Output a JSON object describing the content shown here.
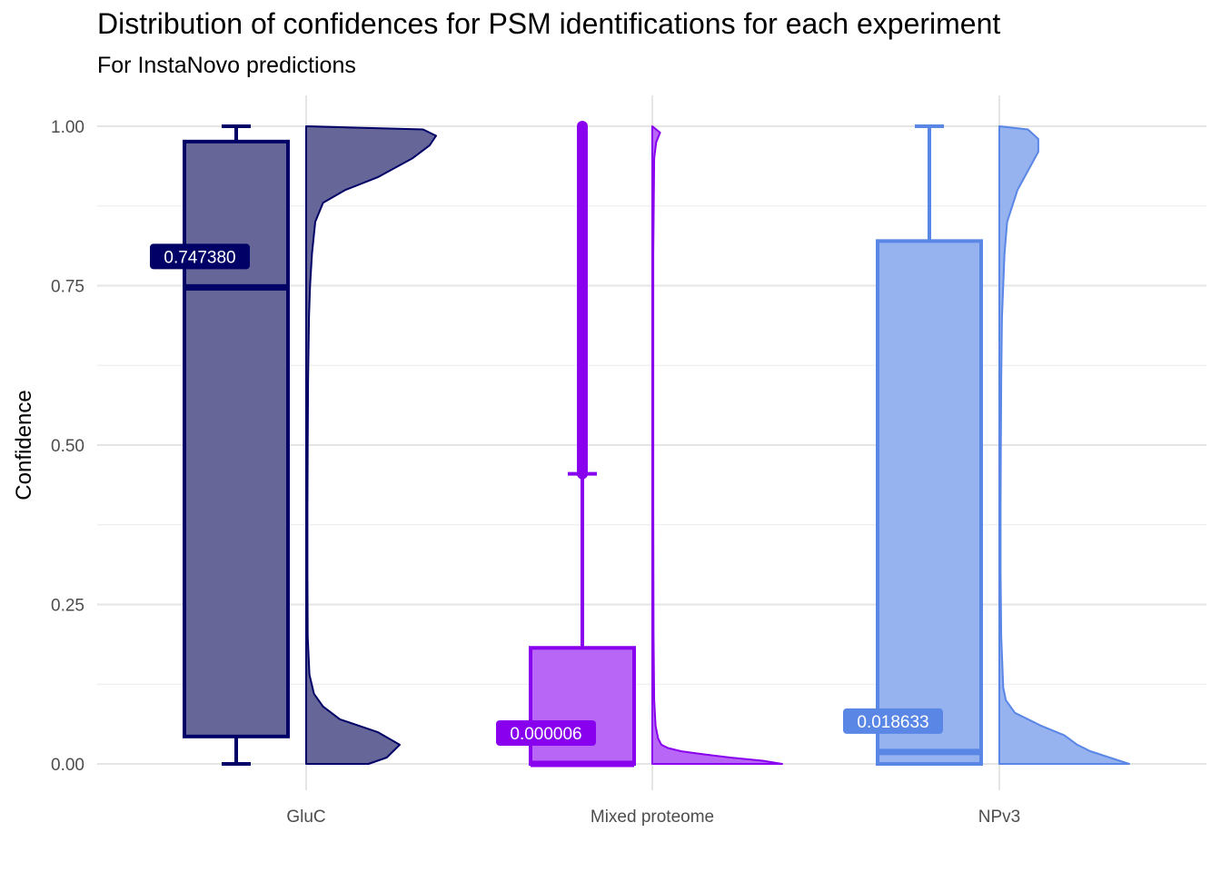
{
  "chart_data": {
    "type": "box-violin",
    "title": "Distribution of confidences for PSM identifications for each experiment",
    "subtitle": "For InstaNovo predictions",
    "xlabel": "",
    "ylabel": "Confidence",
    "ylim": [
      0,
      1
    ],
    "y_ticks": [
      "0.00",
      "0.25",
      "0.50",
      "0.75",
      "1.00"
    ],
    "grid": true,
    "groups": [
      {
        "category": "GluC",
        "color": "#000066",
        "fill": "#666699",
        "box": {
          "min": 0.0,
          "q1": 0.043,
          "median": 0.74738,
          "q3": 0.976,
          "max": 1.0
        },
        "median_label": "0.747380",
        "outliers_from": null,
        "density": [
          [
            0.0,
            0.48
          ],
          [
            0.01,
            0.62
          ],
          [
            0.03,
            0.72
          ],
          [
            0.05,
            0.55
          ],
          [
            0.07,
            0.26
          ],
          [
            0.09,
            0.13
          ],
          [
            0.11,
            0.06
          ],
          [
            0.14,
            0.025
          ],
          [
            0.2,
            0.012
          ],
          [
            0.3,
            0.01
          ],
          [
            0.4,
            0.01
          ],
          [
            0.5,
            0.012
          ],
          [
            0.6,
            0.015
          ],
          [
            0.7,
            0.022
          ],
          [
            0.75,
            0.03
          ],
          [
            0.8,
            0.045
          ],
          [
            0.85,
            0.07
          ],
          [
            0.88,
            0.13
          ],
          [
            0.9,
            0.3
          ],
          [
            0.92,
            0.55
          ],
          [
            0.95,
            0.82
          ],
          [
            0.97,
            0.95
          ],
          [
            0.985,
            1.0
          ],
          [
            0.995,
            0.9
          ],
          [
            1.0,
            0.0
          ]
        ]
      },
      {
        "category": "Mixed proteome",
        "color": "#8800ee",
        "fill": "#b866f5",
        "box": {
          "min": 0.0,
          "q1": 0.0,
          "median": 6e-06,
          "q3": 0.182,
          "max": 0.455
        },
        "median_label": "0.000006",
        "outliers_from": 0.455,
        "density": [
          [
            0.0,
            1.0
          ],
          [
            0.005,
            0.85
          ],
          [
            0.01,
            0.6
          ],
          [
            0.015,
            0.4
          ],
          [
            0.02,
            0.22
          ],
          [
            0.025,
            0.12
          ],
          [
            0.03,
            0.07
          ],
          [
            0.04,
            0.045
          ],
          [
            0.06,
            0.025
          ],
          [
            0.1,
            0.015
          ],
          [
            0.2,
            0.01
          ],
          [
            0.4,
            0.008
          ],
          [
            0.6,
            0.008
          ],
          [
            0.8,
            0.008
          ],
          [
            0.95,
            0.015
          ],
          [
            0.975,
            0.03
          ],
          [
            0.99,
            0.06
          ],
          [
            1.0,
            0.0
          ]
        ]
      },
      {
        "category": "NPv3",
        "color": "#5a86e6",
        "fill": "#96b3f0",
        "box": {
          "min": 0.0,
          "q1": 0.0,
          "median": 0.018633,
          "q3": 0.82,
          "max": 1.0
        },
        "median_label": "0.018633",
        "outliers_from": null,
        "density": [
          [
            0.0,
            1.0
          ],
          [
            0.01,
            0.85
          ],
          [
            0.02,
            0.7
          ],
          [
            0.03,
            0.6
          ],
          [
            0.045,
            0.5
          ],
          [
            0.06,
            0.32
          ],
          [
            0.08,
            0.12
          ],
          [
            0.1,
            0.05
          ],
          [
            0.12,
            0.03
          ],
          [
            0.2,
            0.015
          ],
          [
            0.3,
            0.01
          ],
          [
            0.4,
            0.01
          ],
          [
            0.5,
            0.012
          ],
          [
            0.6,
            0.015
          ],
          [
            0.7,
            0.02
          ],
          [
            0.8,
            0.04
          ],
          [
            0.85,
            0.06
          ],
          [
            0.9,
            0.14
          ],
          [
            0.93,
            0.22
          ],
          [
            0.96,
            0.3
          ],
          [
            0.98,
            0.3
          ],
          [
            0.995,
            0.22
          ],
          [
            1.0,
            0.0
          ]
        ]
      }
    ]
  }
}
